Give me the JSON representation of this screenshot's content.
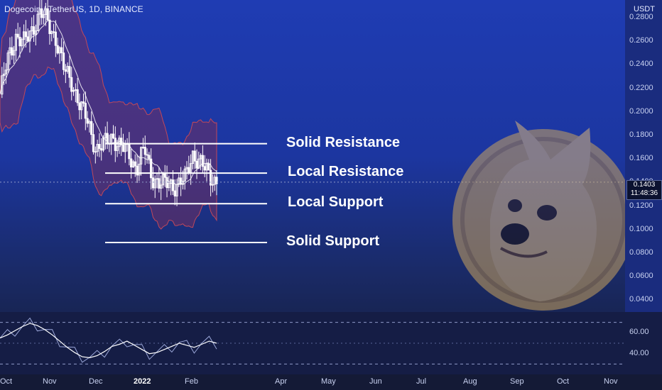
{
  "header": {
    "title": "Dogecoin / TetherUS, 1D, BINANCE"
  },
  "price_scale": {
    "currency": "USDT",
    "ticks": [
      "0.2800",
      "0.2600",
      "0.2400",
      "0.2200",
      "0.2000",
      "0.1800",
      "0.1600",
      "0.1400",
      "0.1200",
      "0.1000",
      "0.0800",
      "0.0600",
      "0.0400"
    ],
    "tick_values": [
      0.28,
      0.26,
      0.24,
      0.22,
      0.2,
      0.18,
      0.16,
      0.14,
      0.12,
      0.1,
      0.08,
      0.06,
      0.04
    ],
    "last_price": "0.1403",
    "countdown": "11:48:36"
  },
  "annotations": [
    {
      "label": "Solid Resistance",
      "value": 0.173
    },
    {
      "label": "Local Resistance",
      "value": 0.148
    },
    {
      "label": "Local Support",
      "value": 0.122
    },
    {
      "label": "Solid Support",
      "value": 0.089
    }
  ],
  "oscillator": {
    "ticks": [
      "60.00",
      "40.00"
    ],
    "tick_values": [
      60,
      40
    ],
    "upper_band": 70,
    "lower_band": 30
  },
  "x_axis": {
    "labels": [
      "Oct",
      "Nov",
      "Dec",
      "2022",
      "Feb",
      "Apr",
      "May",
      "Jun",
      "Jul",
      "Aug",
      "Sep",
      "Oct",
      "Nov"
    ]
  },
  "colors": {
    "background_top": "#1f3cb3",
    "background_bottom": "#141b33",
    "candles": "#ffffff",
    "bollinger_fill": "#6e2f62",
    "bollinger_edge": "#c0485a",
    "moving_average": "#ffffff",
    "level_lines": "#ffffff"
  },
  "chart_data": {
    "type": "candlestick",
    "title": "Dogecoin / TetherUS, 1D, BINANCE",
    "ylim": [
      0.03,
      0.295
    ],
    "price_path": [
      [
        "Oct",
        0.215
      ],
      [
        "",
        0.245
      ],
      [
        "",
        0.265
      ],
      [
        "",
        0.258
      ],
      [
        "",
        0.27
      ],
      [
        "Nov",
        0.285
      ],
      [
        "",
        0.275
      ],
      [
        "",
        0.262
      ],
      [
        "",
        0.235
      ],
      [
        "",
        0.225
      ],
      [
        "Dec",
        0.205
      ],
      [
        "",
        0.19
      ],
      [
        "",
        0.168
      ],
      [
        "",
        0.172
      ],
      [
        "",
        0.18
      ],
      [
        "2022",
        0.17
      ],
      [
        "",
        0.165
      ],
      [
        "",
        0.152
      ],
      [
        "",
        0.168
      ],
      [
        "",
        0.145
      ],
      [
        "",
        0.138
      ],
      [
        "",
        0.14
      ],
      [
        "",
        0.137
      ],
      [
        "Feb",
        0.142
      ],
      [
        "",
        0.165
      ],
      [
        "",
        0.155
      ],
      [
        "",
        0.148
      ],
      [
        "",
        0.1403
      ]
    ],
    "oscillator_values": [
      55,
      58,
      62,
      66,
      69,
      67,
      63,
      58,
      52,
      46,
      41,
      37,
      36,
      38,
      42,
      47,
      49,
      52,
      48,
      44,
      40,
      41,
      44,
      47,
      50,
      48,
      46,
      49,
      52,
      50
    ]
  }
}
